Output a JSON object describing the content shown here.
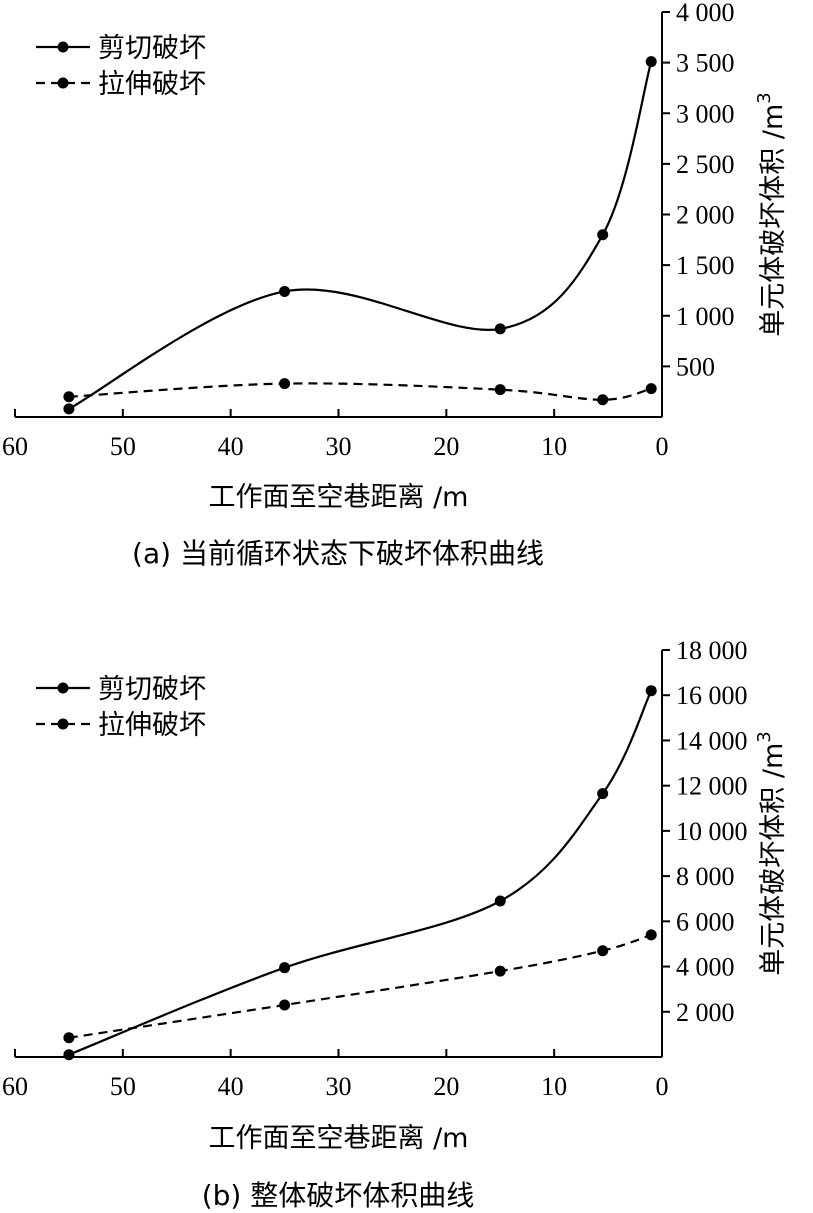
{
  "chart_data": [
    {
      "type": "line",
      "caption": "(a)  当前循环状态下破坏体积曲线",
      "xlabel": "工作面至空巷距离 /m",
      "ylabel": "单元体破坏体积 /m",
      "ylabel_superscript": "3",
      "xlim": [
        60,
        0
      ],
      "ylim": [
        0,
        4000
      ],
      "x_ticks": [
        60,
        50,
        40,
        30,
        20,
        10,
        0
      ],
      "y_ticks": [
        500,
        1000,
        1500,
        2000,
        2500,
        3000,
        3500,
        4000
      ],
      "y_tick_labels": [
        "500",
        "1 000",
        "1 500",
        "2 000",
        "2 500",
        "3 000",
        "3 500",
        "4 000"
      ],
      "legend_position": "top-left",
      "series": [
        {
          "name": "剪切破坏",
          "style": "solid",
          "x": [
            55,
            35,
            15,
            5.5,
            1
          ],
          "y": [
            80,
            1240,
            870,
            1800,
            3510
          ]
        },
        {
          "name": "拉伸破坏",
          "style": "dashed",
          "x": [
            55,
            35,
            15,
            5.5,
            1
          ],
          "y": [
            200,
            330,
            270,
            170,
            280
          ]
        }
      ]
    },
    {
      "type": "line",
      "caption": "(b)  整体破坏体积曲线",
      "xlabel": "工作面至空巷距离 /m",
      "ylabel": "单元体破坏体积 /m",
      "ylabel_superscript": "3",
      "xlim": [
        60,
        0
      ],
      "ylim": [
        0,
        18000
      ],
      "x_ticks": [
        60,
        50,
        40,
        30,
        20,
        10,
        0
      ],
      "y_ticks": [
        2000,
        4000,
        6000,
        8000,
        10000,
        12000,
        14000,
        16000,
        18000
      ],
      "y_tick_labels": [
        "2 000",
        "4 000",
        "6 000",
        "8 000",
        "10 000",
        "12 000",
        "14 000",
        "16 000",
        "18 000"
      ],
      "legend_position": "top-left",
      "series": [
        {
          "name": "剪切破坏",
          "style": "solid",
          "x": [
            55,
            35,
            15,
            5.5,
            1
          ],
          "y": [
            100,
            3950,
            6900,
            11650,
            16200
          ]
        },
        {
          "name": "拉伸破坏",
          "style": "dashed",
          "x": [
            55,
            35,
            15,
            5.5,
            1
          ],
          "y": [
            850,
            2300,
            3800,
            4700,
            5400
          ]
        }
      ]
    }
  ]
}
